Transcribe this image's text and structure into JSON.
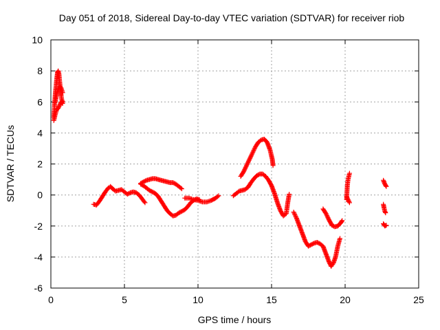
{
  "chart_data": {
    "type": "scatter",
    "title": "Day 051 of 2018, Sidereal Day-to-day VTEC variation (SDTVAR) for receiver riob",
    "xlabel": "GPS time / hours",
    "ylabel": "SDTVAR / TECUs",
    "xlim": [
      0,
      25
    ],
    "ylim": [
      -6,
      10
    ],
    "xticks": [
      0,
      5,
      10,
      15,
      20,
      25
    ],
    "yticks": [
      -6,
      -4,
      -2,
      0,
      2,
      4,
      6,
      8,
      10
    ],
    "xtick_labels": [
      "0",
      "5",
      "10",
      "15",
      "20",
      "25"
    ],
    "ytick_labels": [
      "-6",
      "-4",
      "-2",
      "0",
      "2",
      "4",
      "6",
      "8",
      "10"
    ],
    "grid": true,
    "marker": "plus",
    "color": "#ff0000",
    "segments": [
      [
        [
          0.2,
          5.0
        ],
        [
          0.25,
          5.8
        ],
        [
          0.3,
          6.5
        ],
        [
          0.35,
          7.0
        ],
        [
          0.4,
          7.5
        ],
        [
          0.45,
          7.9
        ],
        [
          0.5,
          8.0
        ],
        [
          0.55,
          7.8
        ],
        [
          0.6,
          7.3
        ],
        [
          0.65,
          6.8
        ],
        [
          0.7,
          6.4
        ],
        [
          0.75,
          6.1
        ],
        [
          0.8,
          6.0
        ]
      ],
      [
        [
          0.2,
          4.8
        ],
        [
          0.3,
          5.2
        ],
        [
          0.4,
          5.5
        ],
        [
          0.5,
          5.6
        ],
        [
          0.6,
          5.8
        ],
        [
          0.7,
          6.0
        ],
        [
          0.8,
          5.9
        ]
      ],
      [
        [
          0.3,
          6.0
        ],
        [
          0.4,
          6.5
        ],
        [
          0.5,
          6.8
        ],
        [
          0.6,
          7.0
        ],
        [
          0.7,
          6.9
        ],
        [
          0.8,
          6.6
        ]
      ],
      [
        [
          2.9,
          -0.6
        ],
        [
          3.1,
          -0.65
        ],
        [
          3.3,
          -0.4
        ],
        [
          3.5,
          -0.1
        ],
        [
          3.7,
          0.2
        ],
        [
          3.9,
          0.45
        ],
        [
          4.05,
          0.55
        ],
        [
          4.2,
          0.4
        ],
        [
          4.4,
          0.25
        ],
        [
          4.6,
          0.3
        ],
        [
          4.8,
          0.35
        ],
        [
          5.0,
          0.2
        ],
        [
          5.2,
          0.05
        ],
        [
          5.4,
          0.15
        ],
        [
          5.6,
          0.2
        ],
        [
          5.8,
          0.15
        ],
        [
          6.0,
          0.0
        ],
        [
          6.2,
          -0.25
        ],
        [
          6.4,
          -0.5
        ]
      ],
      [
        [
          6.1,
          0.75
        ],
        [
          6.3,
          0.85
        ],
        [
          6.5,
          0.95
        ],
        [
          6.7,
          1.0
        ],
        [
          6.9,
          1.05
        ],
        [
          7.1,
          1.05
        ],
        [
          7.3,
          1.0
        ],
        [
          7.5,
          0.95
        ],
        [
          7.7,
          0.9
        ],
        [
          7.9,
          0.85
        ],
        [
          8.1,
          0.8
        ],
        [
          8.3,
          0.8
        ],
        [
          8.5,
          0.7
        ],
        [
          8.7,
          0.55
        ],
        [
          8.9,
          0.4
        ]
      ],
      [
        [
          6.1,
          0.7
        ],
        [
          6.3,
          0.6
        ],
        [
          6.5,
          0.45
        ],
        [
          6.7,
          0.3
        ],
        [
          6.9,
          0.2
        ],
        [
          7.1,
          0.1
        ],
        [
          7.3,
          -0.1
        ],
        [
          7.5,
          -0.4
        ],
        [
          7.7,
          -0.7
        ],
        [
          7.9,
          -1.0
        ],
        [
          8.1,
          -1.2
        ],
        [
          8.3,
          -1.35
        ],
        [
          8.5,
          -1.3
        ],
        [
          8.7,
          -1.15
        ],
        [
          8.9,
          -1.05
        ],
        [
          9.1,
          -0.95
        ],
        [
          9.3,
          -0.75
        ],
        [
          9.5,
          -0.5
        ],
        [
          9.7,
          -0.35
        ],
        [
          9.9,
          -0.25
        ],
        [
          10.1,
          -0.3
        ]
      ],
      [
        [
          9.1,
          -0.2
        ],
        [
          9.4,
          -0.2
        ],
        [
          9.7,
          -0.3
        ],
        [
          10.0,
          -0.35
        ],
        [
          10.3,
          -0.45
        ],
        [
          10.6,
          -0.45
        ],
        [
          10.9,
          -0.35
        ],
        [
          11.2,
          -0.2
        ],
        [
          11.4,
          -0.05
        ]
      ],
      [
        [
          12.4,
          -0.05
        ],
        [
          12.6,
          0.1
        ],
        [
          12.8,
          0.25
        ],
        [
          13.0,
          0.3
        ],
        [
          13.2,
          0.35
        ],
        [
          13.4,
          0.5
        ],
        [
          13.6,
          0.8
        ],
        [
          13.8,
          1.05
        ],
        [
          14.0,
          1.25
        ],
        [
          14.2,
          1.35
        ],
        [
          14.4,
          1.35
        ],
        [
          14.6,
          1.2
        ],
        [
          14.8,
          0.95
        ],
        [
          15.0,
          0.6
        ],
        [
          15.2,
          0.1
        ],
        [
          15.4,
          -0.5
        ],
        [
          15.6,
          -1.0
        ],
        [
          15.8,
          -1.35
        ],
        [
          16.0,
          -1.2
        ],
        [
          16.1,
          -0.5
        ],
        [
          16.2,
          0.05
        ]
      ],
      [
        [
          12.9,
          1.2
        ],
        [
          13.1,
          1.5
        ],
        [
          13.3,
          1.9
        ],
        [
          13.5,
          2.3
        ],
        [
          13.7,
          2.7
        ],
        [
          13.9,
          3.1
        ],
        [
          14.1,
          3.4
        ],
        [
          14.3,
          3.55
        ],
        [
          14.5,
          3.6
        ],
        [
          14.7,
          3.4
        ],
        [
          14.9,
          2.9
        ],
        [
          15.05,
          2.3
        ],
        [
          15.1,
          1.9
        ]
      ],
      [
        [
          16.5,
          -1.1
        ],
        [
          16.7,
          -1.5
        ],
        [
          16.9,
          -2.0
        ],
        [
          17.1,
          -2.5
        ],
        [
          17.3,
          -3.0
        ],
        [
          17.5,
          -3.3
        ],
        [
          17.7,
          -3.2
        ],
        [
          17.9,
          -3.1
        ],
        [
          18.1,
          -3.05
        ],
        [
          18.3,
          -3.15
        ],
        [
          18.5,
          -3.3
        ],
        [
          18.7,
          -3.8
        ],
        [
          18.9,
          -4.3
        ],
        [
          19.05,
          -4.6
        ],
        [
          19.2,
          -4.4
        ],
        [
          19.35,
          -4.0
        ],
        [
          19.5,
          -3.3
        ],
        [
          19.65,
          -2.8
        ]
      ],
      [
        [
          18.5,
          -0.9
        ],
        [
          18.7,
          -1.2
        ],
        [
          18.9,
          -1.6
        ],
        [
          19.1,
          -1.95
        ],
        [
          19.3,
          -2.05
        ],
        [
          19.5,
          -2.0
        ],
        [
          19.7,
          -1.8
        ],
        [
          19.8,
          -1.65
        ]
      ],
      [
        [
          20.1,
          -0.3
        ],
        [
          20.15,
          0.6
        ],
        [
          20.2,
          1.0
        ],
        [
          20.25,
          1.2
        ],
        [
          20.3,
          1.4
        ]
      ],
      [
        [
          20.1,
          -0.1
        ],
        [
          20.2,
          -0.3
        ],
        [
          20.3,
          -0.5
        ]
      ],
      [
        [
          22.6,
          -0.6
        ],
        [
          22.65,
          -0.85
        ],
        [
          22.7,
          -1.05
        ],
        [
          22.75,
          -1.15
        ]
      ],
      [
        [
          22.6,
          0.95
        ],
        [
          22.7,
          0.7
        ],
        [
          22.8,
          0.55
        ]
      ],
      [
        [
          22.6,
          -1.85
        ],
        [
          22.7,
          -2.0
        ],
        [
          22.8,
          -1.95
        ]
      ]
    ]
  }
}
